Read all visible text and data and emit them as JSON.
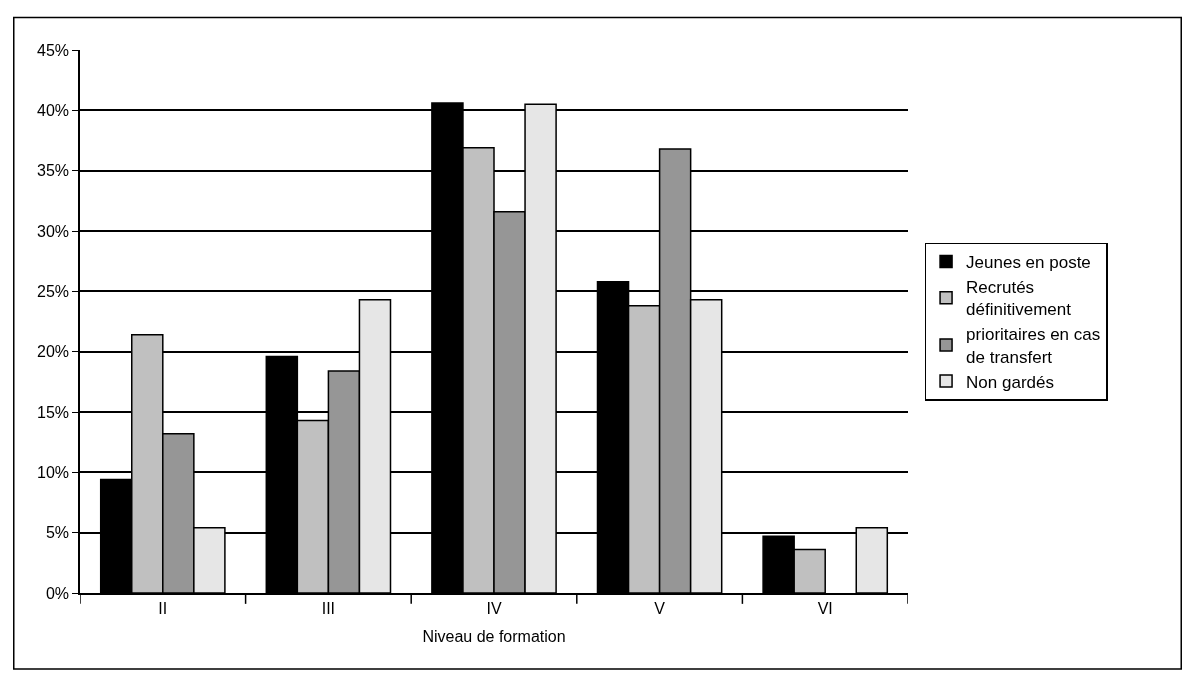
{
  "chart_data": {
    "type": "bar",
    "xlabel": "Niveau de formation",
    "categories": [
      "II",
      "III",
      "IV",
      "V",
      "VI"
    ],
    "series": [
      {
        "name": "Jeunes en poste",
        "color": "#000000",
        "values": [
          9.4,
          19.6,
          40.6,
          25.8,
          4.7
        ]
      },
      {
        "name": "Recrutés définitivement",
        "color": "#c0c0c0",
        "values": [
          21.4,
          14.3,
          36.9,
          23.8,
          3.6
        ]
      },
      {
        "name": "prioritaires en cas de transfert",
        "color": "#969696",
        "values": [
          13.2,
          18.4,
          31.6,
          36.8,
          null
        ]
      },
      {
        "name": "Non gardés",
        "color": "#e6e6e6",
        "values": [
          5.4,
          24.3,
          40.5,
          24.3,
          5.4
        ]
      }
    ],
    "ylim": [
      0,
      45
    ],
    "yticks": [
      {
        "value": 0,
        "label": "0%"
      },
      {
        "value": 5,
        "label": "5%"
      },
      {
        "value": 10,
        "label": "10%"
      },
      {
        "value": 15,
        "label": "15%"
      },
      {
        "value": 20,
        "label": "20%"
      },
      {
        "value": 25,
        "label": "25%"
      },
      {
        "value": 30,
        "label": "30%"
      },
      {
        "value": 35,
        "label": "35%"
      },
      {
        "value": 40,
        "label": "40%"
      },
      {
        "value": 45,
        "label": "45%"
      }
    ],
    "grid": "y",
    "legend": "right"
  }
}
